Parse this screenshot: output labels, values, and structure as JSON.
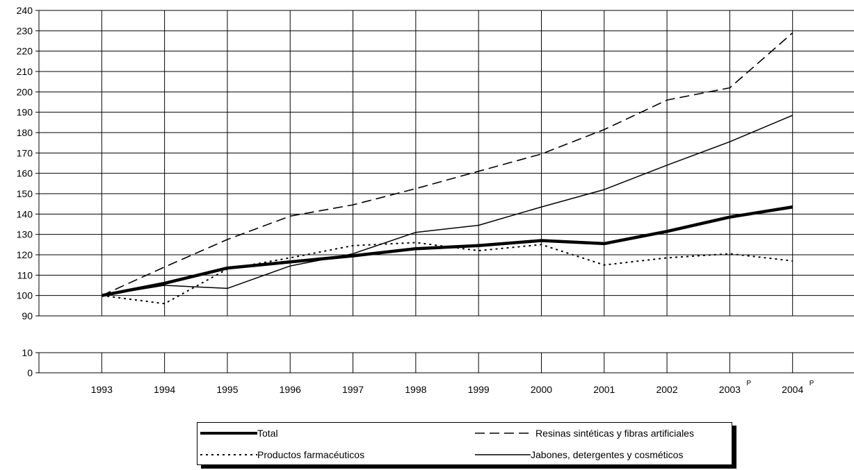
{
  "chart_data": {
    "type": "line",
    "categories": [
      "1993",
      "1994",
      "1995",
      "1996",
      "1997",
      "1998",
      "1999",
      "2000",
      "2001",
      "2002",
      "2003",
      "2004"
    ],
    "category_superscripts": [
      "",
      "",
      "",
      "",
      "",
      "",
      "",
      "",
      "",
      "",
      "P",
      "P"
    ],
    "series": [
      {
        "name": "Total",
        "style": "thick",
        "color": "#000000",
        "values": [
          100,
          106,
          113.5,
          116.5,
          119.5,
          123,
          124.5,
          127,
          125.5,
          131.5,
          138.5,
          143.5
        ]
      },
      {
        "name": "Resinas sintéticas y fibras artificiales",
        "style": "dashed",
        "color": "#000000",
        "values": [
          100,
          114,
          127.5,
          139,
          144.5,
          152.5,
          161,
          169.5,
          181.5,
          196,
          202,
          229
        ]
      },
      {
        "name": "Productos farmacéuticos",
        "style": "dotted",
        "color": "#000000",
        "values": [
          100,
          96,
          113,
          118.5,
          124.5,
          126,
          122,
          125,
          115,
          118.5,
          120.5,
          117
        ]
      },
      {
        "name": "Jabones, detergentes y cosméticos",
        "style": "thin",
        "color": "#000000",
        "values": [
          100,
          105,
          103.5,
          114.5,
          120.5,
          131,
          134.5,
          143.5,
          152,
          164,
          175.5,
          188.5
        ]
      }
    ],
    "y_axis_upper": {
      "ylim": [
        90,
        240
      ],
      "ticks": [
        90,
        100,
        110,
        120,
        130,
        140,
        150,
        160,
        170,
        180,
        190,
        200,
        210,
        220,
        230,
        240
      ]
    },
    "y_axis_lower": {
      "ylim": [
        0,
        10
      ],
      "ticks": [
        0,
        10
      ]
    },
    "axis_break": true,
    "grid": true,
    "legend_position": "bottom-center",
    "title": "",
    "xlabel": "",
    "ylabel": ""
  },
  "legend": {
    "items": [
      "Total",
      "Resinas sintéticas y fibras artificiales",
      "Productos farmacéuticos",
      "Jabones, detergentes y cosméticos"
    ]
  }
}
